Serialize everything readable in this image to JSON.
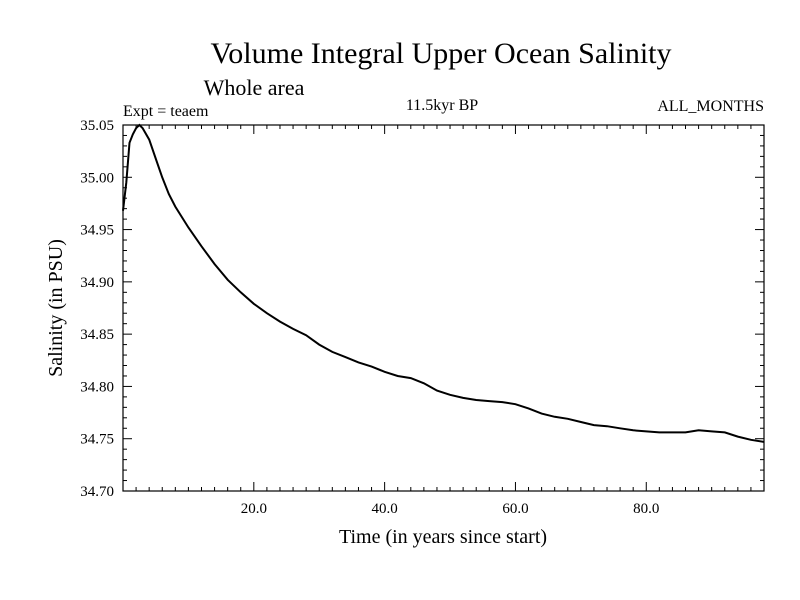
{
  "chart_data": {
    "type": "line",
    "title": "Volume Integral Upper Ocean Salinity",
    "subtitle": "Whole area",
    "annotations": {
      "left": "Expt = teaem",
      "center": "11.5kyr BP",
      "right": "ALL_MONTHS"
    },
    "xlabel": "Time (in years since start)",
    "ylabel": "Salinity (in PSU)",
    "xlim": [
      0,
      98
    ],
    "ylim": [
      34.7,
      35.05
    ],
    "x_ticks": [
      20,
      40,
      60,
      80
    ],
    "x_tick_labels": [
      "20.0",
      "40.0",
      "60.0",
      "80.0"
    ],
    "y_ticks": [
      34.7,
      34.75,
      34.8,
      34.85,
      34.9,
      34.95,
      35.0,
      35.05
    ],
    "y_tick_labels": [
      "34.70",
      "34.75",
      "34.80",
      "34.85",
      "34.90",
      "34.95",
      "35.00",
      "35.05"
    ],
    "grid": false,
    "series": [
      {
        "name": "salinity",
        "x": [
          0,
          0.5,
          1,
          1.5,
          2,
          2.5,
          3,
          4,
          5,
          6,
          7,
          8,
          10,
          12,
          14,
          16,
          18,
          20,
          22,
          24,
          26,
          28,
          30,
          32,
          34,
          36,
          38,
          40,
          42,
          44,
          46,
          48,
          50,
          52,
          54,
          56,
          58,
          60,
          62,
          64,
          66,
          68,
          70,
          72,
          74,
          76,
          78,
          80,
          82,
          84,
          86,
          88,
          90,
          92,
          94,
          96,
          98
        ],
        "values": [
          34.968,
          34.995,
          35.033,
          35.041,
          35.047,
          35.05,
          35.047,
          35.036,
          35.018,
          35.0,
          34.984,
          34.972,
          34.952,
          34.934,
          34.917,
          34.902,
          34.89,
          34.879,
          34.87,
          34.862,
          34.855,
          34.849,
          34.84,
          34.833,
          34.828,
          34.823,
          34.819,
          34.814,
          34.81,
          34.808,
          34.803,
          34.796,
          34.792,
          34.789,
          34.787,
          34.786,
          34.785,
          34.783,
          34.779,
          34.774,
          34.771,
          34.769,
          34.766,
          34.763,
          34.762,
          34.76,
          34.758,
          34.757,
          34.756,
          34.756,
          34.756,
          34.758,
          34.757,
          34.756,
          34.752,
          34.749,
          34.747
        ]
      }
    ]
  }
}
